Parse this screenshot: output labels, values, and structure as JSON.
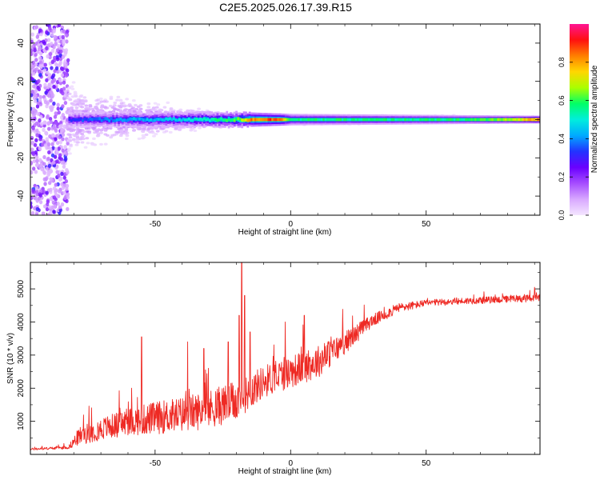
{
  "title": "C2E5.2025.026.17.39.R15",
  "colors": {
    "snr_line": "#ee2a24",
    "colormap": [
      "#f4e6ff",
      "#d8a8ff",
      "#a64dff",
      "#6a00ff",
      "#2233ff",
      "#00aaff",
      "#00eedd",
      "#00ff66",
      "#aaff00",
      "#ffd700",
      "#ff7f00",
      "#ff1010",
      "#ff1493"
    ]
  },
  "chart_data": [
    {
      "type": "heatmap",
      "xlabel": "Height of straight line (km)",
      "ylabel": "Frequency (Hz)",
      "xlim": [
        -96,
        92
      ],
      "ylim": [
        -50,
        50
      ],
      "xticks": [
        -50,
        0,
        50
      ],
      "yticks": [
        -40,
        -20,
        0,
        20,
        40
      ],
      "colorbar": {
        "label": "Normalized spectral amplitude",
        "range": [
          0,
          1
        ],
        "ticks": [
          "0.0",
          "0.2",
          "0.4",
          "0.6",
          "0.8"
        ]
      },
      "features": {
        "noise_region_x": [
          -96,
          -82
        ],
        "ridge_frequency": 0,
        "ridge_x": [
          -82,
          92
        ],
        "spread_halfwidth": [
          {
            "x": -80,
            "hz": 24
          },
          {
            "x": -60,
            "hz": 14
          },
          {
            "x": -40,
            "hz": 8
          },
          {
            "x": -20,
            "hz": 4
          },
          {
            "x": 0,
            "hz": 3
          },
          {
            "x": 50,
            "hz": 2.5
          },
          {
            "x": 92,
            "hz": 2
          }
        ],
        "amplitude_profile": [
          {
            "x": -82,
            "a": 0.35
          },
          {
            "x": -60,
            "a": 0.45
          },
          {
            "x": -40,
            "a": 0.5
          },
          {
            "x": -20,
            "a": 0.65
          },
          {
            "x": -15,
            "a": 0.9
          },
          {
            "x": -4,
            "a": 0.95
          },
          {
            "x": 0,
            "a": 0.6
          },
          {
            "x": 20,
            "a": 0.6
          },
          {
            "x": 60,
            "a": 0.6
          },
          {
            "x": 80,
            "a": 0.7
          },
          {
            "x": 92,
            "a": 0.9
          }
        ]
      }
    },
    {
      "type": "line",
      "xlabel": "Height of straight line (km)",
      "ylabel": "SNR (10 * v/v)",
      "xlim": [
        -96,
        92
      ],
      "ylim": [
        0,
        5800
      ],
      "xticks": [
        -50,
        0,
        50
      ],
      "yticks": [
        1000,
        2000,
        3000,
        4000,
        5000
      ],
      "series": [
        {
          "baseline": [
            {
              "x": -96,
              "y": 150
            },
            {
              "x": -82,
              "y": 200
            },
            {
              "x": -78,
              "y": 500
            },
            {
              "x": -70,
              "y": 700
            },
            {
              "x": -60,
              "y": 900
            },
            {
              "x": -50,
              "y": 1000
            },
            {
              "x": -40,
              "y": 1100
            },
            {
              "x": -30,
              "y": 1250
            },
            {
              "x": -20,
              "y": 1500
            },
            {
              "x": -10,
              "y": 2100
            },
            {
              "x": 0,
              "y": 2400
            },
            {
              "x": 10,
              "y": 2700
            },
            {
              "x": 20,
              "y": 3300
            },
            {
              "x": 30,
              "y": 4000
            },
            {
              "x": 40,
              "y": 4400
            },
            {
              "x": 50,
              "y": 4550
            },
            {
              "x": 60,
              "y": 4600
            },
            {
              "x": 75,
              "y": 4650
            },
            {
              "x": 92,
              "y": 4700
            }
          ],
          "noise": [
            {
              "x": -96,
              "amp": 60
            },
            {
              "x": -82,
              "amp": 80
            },
            {
              "x": -78,
              "amp": 500
            },
            {
              "x": -50,
              "amp": 900
            },
            {
              "x": -25,
              "amp": 1100
            },
            {
              "x": -10,
              "amp": 900
            },
            {
              "x": 10,
              "amp": 900
            },
            {
              "x": 30,
              "amp": 350
            },
            {
              "x": 50,
              "amp": 180
            },
            {
              "x": 92,
              "amp": 200
            }
          ],
          "spikes": [
            {
              "x": -55,
              "y": 3550
            },
            {
              "x": -38,
              "y": 3400
            },
            {
              "x": -32,
              "y": 3200
            },
            {
              "x": -23,
              "y": 3400
            },
            {
              "x": -19,
              "y": 4200
            },
            {
              "x": -18,
              "y": 5800
            },
            {
              "x": -17,
              "y": 4800
            },
            {
              "x": -15,
              "y": 3700
            },
            {
              "x": -2,
              "y": 4000
            },
            {
              "x": 5,
              "y": 4200
            },
            {
              "x": 90,
              "y": 5050
            }
          ]
        }
      ]
    }
  ]
}
